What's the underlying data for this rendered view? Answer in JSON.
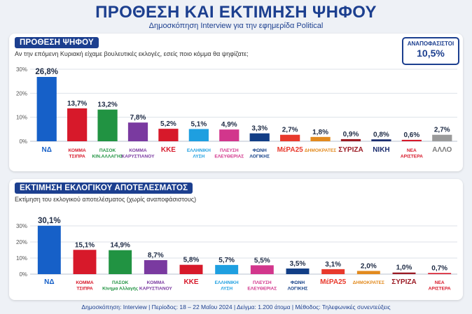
{
  "header": {
    "title": "ΠΡΟΘΕΣΗ ΚΑΙ ΕΚΤΙΜΗΣΗ ΨΗΦΟΥ",
    "subtitle": "Δημοσκόπηση Interview για την εφημερίδα Political"
  },
  "panel1": {
    "header": "ΠΡΟΘΕΣΗ ΨΗΦΟΥ",
    "question": "Αν την επόμενη Κυριακή είχαμε βουλευτικές εκλογές, εσείς ποιο κόμμα θα ψηφίζατε;",
    "undecided_label": "ΑΝΑΠΟΦΑΣΙΣΤΟΙ",
    "undecided_value": "10,5%"
  },
  "panel2": {
    "header": "ΕΚΤΙΜΗΣΗ ΕΚΛΟΓΙΚΟΥ ΑΠΟΤΕΛΕΣΜΑΤΟΣ",
    "question": "Εκτίμηση του εκλογικού αποτελέσματος (χωρίς αναποφάσιστους)"
  },
  "footer": "Δημοσκόπηση: Interview | Περίοδος: 18 – 22 Μαΐου 2024 | Δείγμα: 1.200 άτομα | Μέθοδος: Τηλεφωνικές συνεντεύξεις",
  "chart_data": [
    {
      "type": "bar",
      "categories": [
        "ΝΔ",
        "ΚΟΜΜΑ ΤΣΙΠΡΑ",
        "ΠΑΣΟΚ",
        "ΚΟΜΜΑ ΚΑΡΥΣΤΙΑΝΟΥ",
        "ΚΚΕ",
        "ΕΛΛΗΝΙΚΗ ΛΥΣΗ",
        "ΠΛΕΥΣΗ ΕΛΕΥΘΕΡΙΑΣ",
        "ΦΩΝΗ ΛΟΓΙΚΗΣ",
        "ΜέΡΑ25",
        "ΔΗΜΟΚΡΑΤΕΣ",
        "ΣΥΡΙΖΑ",
        "ΝΙΚΗ",
        "ΝΕΑ ΑΡΙΣΤΕΡΑ",
        "ΑΛΛΟ"
      ],
      "values": [
        26.8,
        13.7,
        13.2,
        7.8,
        5.2,
        5.1,
        4.9,
        3.3,
        2.7,
        1.8,
        0.9,
        0.8,
        0.6,
        2.7
      ],
      "value_labels": [
        "26,8%",
        "13,7%",
        "13,2%",
        "7,8%",
        "5,2%",
        "5,1%",
        "4,9%",
        "3,3%",
        "2,7%",
        "1,8%",
        "0,9%",
        "0,8%",
        "0,6%",
        "2,7%"
      ],
      "colors": [
        "#1660c8",
        "#d7192a",
        "#219342",
        "#7a3aa0",
        "#d7192a",
        "#1e9fe0",
        "#d2368c",
        "#123e86",
        "#e8392c",
        "#e28a1e",
        "#9b1b24",
        "#1b2d6e",
        "#d7192a",
        "#9a9a9a"
      ],
      "category_labels": [
        [
          "ΝΔ"
        ],
        [
          "ΚΟΜΜΑ",
          "ΤΣΙΠΡΑ"
        ],
        [
          "ΠΑΣΟΚ",
          "ΚΙΝ.ΑΛΛΑΓΗΣ"
        ],
        [
          "ΚΟΜΜΑ",
          "ΚΑΡΥΣΤΙΑΝΟΥ"
        ],
        [
          "ΚΚΕ"
        ],
        [
          "ΕΛΛΗΝΙΚΗ",
          "ΛΥΣΗ"
        ],
        [
          "ΠΛΕΥΣΗ",
          "ΕΛΕΥΘΕΡΙΑΣ"
        ],
        [
          "ΦΩΝΗ",
          "ΛΟΓΙΚΗΣ"
        ],
        [
          "ΜέΡΑ25"
        ],
        [
          "ΔΗΜΟΚΡΑΤΕΣ"
        ],
        [
          "ΣΥΡΙΖΑ"
        ],
        [
          "ΝΙΚΗ"
        ],
        [
          "ΝΕΑ",
          "ΑΡΙΣΤΕΡΑ"
        ],
        [
          "ΑΛΛΟ"
        ]
      ],
      "yticks": [
        "0%",
        "10%",
        "20%",
        "30%"
      ],
      "ylim": [
        0,
        30
      ],
      "grid": true
    },
    {
      "type": "bar",
      "categories": [
        "ΝΔ",
        "ΚΟΜΜΑ ΤΣΙΠΡΑ",
        "ΠΑΣΟΚ",
        "ΚΟΜΜΑ ΚΑΡΥΣΤΙΑΝΟΥ",
        "ΚΚΕ",
        "ΕΛΛΗΝΙΚΗ ΛΥΣΗ",
        "ΠΛΕΥΣΗ ΕΛΕΥΘΕΡΙΑΣ",
        "ΦΩΝΗ ΛΟΓΙΚΗΣ",
        "ΜέΡΑ25",
        "ΔΗΜΟΚΡΑΤΕΣ",
        "ΣΥΡΙΖΑ",
        "ΝΕΑ ΑΡΙΣΤΕΡΑ"
      ],
      "values": [
        30.1,
        15.1,
        14.9,
        8.7,
        5.8,
        5.7,
        5.5,
        3.5,
        3.1,
        2.0,
        1.0,
        0.7
      ],
      "value_labels": [
        "30,1%",
        "15,1%",
        "14,9%",
        "8,7%",
        "5,8%",
        "5,7%",
        "5,5%",
        "3,5%",
        "3,1%",
        "2,0%",
        "1,0%",
        "0,7%"
      ],
      "colors": [
        "#1660c8",
        "#d7192a",
        "#219342",
        "#7a3aa0",
        "#d7192a",
        "#1e9fe0",
        "#d2368c",
        "#123e86",
        "#e8392c",
        "#e28a1e",
        "#9b1b24",
        "#d7192a"
      ],
      "category_labels": [
        [
          "ΝΔ"
        ],
        [
          "ΚΟΜΜΑ",
          "ΤΣΙΠΡΑ"
        ],
        [
          "ΠΑΣΟΚ",
          "Κίνημα Αλλαγής"
        ],
        [
          "ΚΟΜΜΑ",
          "ΚΑΡΥΣΤΙΑΝΟΥ"
        ],
        [
          "ΚΚΕ"
        ],
        [
          "ΕΛΛΗΝΙΚΗ",
          "ΛΥΣΗ"
        ],
        [
          "ΠΛΕΥΣΗ",
          "ΕΛΕΥΘΕΡΙΑΣ"
        ],
        [
          "ΦΩΝΗ",
          "ΛΟΓΙΚΗΣ"
        ],
        [
          "ΜέΡΑ25"
        ],
        [
          "ΔΗΜΟΚΡΑΤΕΣ"
        ],
        [
          "ΣΥΡΙΖΑ"
        ],
        [
          "ΝΕΑ",
          "ΑΡΙΣΤΕΡΑ"
        ]
      ],
      "yticks": [
        "0%",
        "10%",
        "20%",
        "30%"
      ],
      "ylim": [
        0,
        30
      ],
      "grid": true
    }
  ]
}
